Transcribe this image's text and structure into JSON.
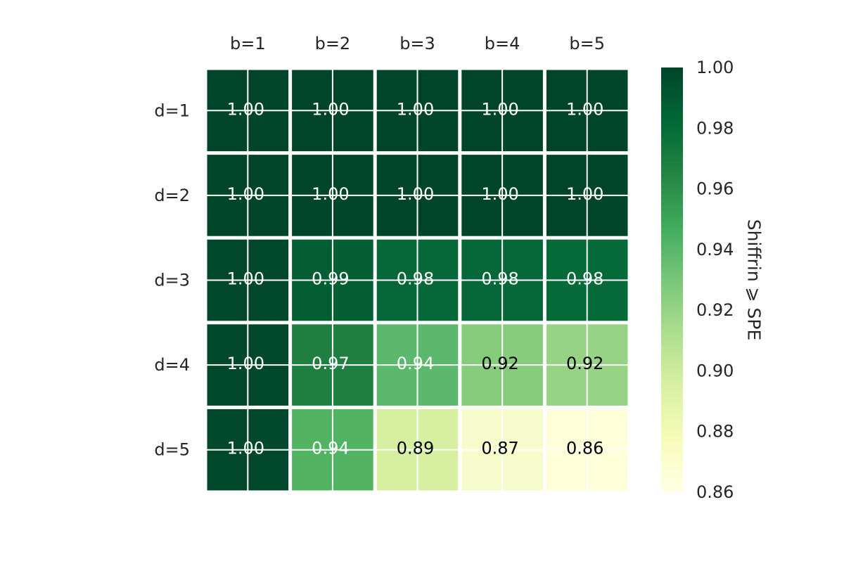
{
  "chart_data": {
    "type": "heatmap",
    "title": "",
    "xlabel": "",
    "ylabel": "",
    "x_labels": [
      "b=1",
      "b=2",
      "b=3",
      "b=4",
      "b=5"
    ],
    "y_labels": [
      "d=1",
      "d=2",
      "d=3",
      "d=4",
      "d=5"
    ],
    "values": [
      [
        1.0,
        1.0,
        1.0,
        1.0,
        1.0
      ],
      [
        1.0,
        1.0,
        1.0,
        1.0,
        1.0
      ],
      [
        1.0,
        0.99,
        0.98,
        0.98,
        0.98
      ],
      [
        1.0,
        0.97,
        0.94,
        0.92,
        0.92
      ],
      [
        1.0,
        0.94,
        0.89,
        0.87,
        0.86
      ]
    ],
    "cell_text": [
      [
        "1.00",
        "1.00",
        "1.00",
        "1.00",
        "1.00"
      ],
      [
        "1.00",
        "1.00",
        "1.00",
        "1.00",
        "1.00"
      ],
      [
        "1.00",
        "0.99",
        "0.98",
        "0.98",
        "0.98"
      ],
      [
        "1.00",
        "0.97",
        "0.94",
        "0.92",
        "0.92"
      ],
      [
        "1.00",
        "0.94",
        "0.89",
        "0.87",
        "0.86"
      ]
    ],
    "fill_colors": [
      [
        "#00442a",
        "#00442a",
        "#00442a",
        "#00442a",
        "#00442a"
      ],
      [
        "#00442a",
        "#00442a",
        "#00442a",
        "#00442a",
        "#00442a"
      ],
      [
        "#00472b",
        "#035e33",
        "#066838",
        "#066838",
        "#066a39"
      ],
      [
        "#00472b",
        "#1f7f40",
        "#5cb86c",
        "#86cc7c",
        "#96d384"
      ],
      [
        "#00472b",
        "#52b363",
        "#d7efa0",
        "#f6fccb",
        "#fefed8"
      ]
    ],
    "text_colors": [
      [
        "#ffffff",
        "#ffffff",
        "#ffffff",
        "#ffffff",
        "#ffffff"
      ],
      [
        "#ffffff",
        "#ffffff",
        "#ffffff",
        "#ffffff",
        "#ffffff"
      ],
      [
        "#ffffff",
        "#ffffff",
        "#ffffff",
        "#ffffff",
        "#ffffff"
      ],
      [
        "#ffffff",
        "#ffffff",
        "#ffffff",
        "#000000",
        "#000000"
      ],
      [
        "#ffffff",
        "#ffffff",
        "#000000",
        "#000000",
        "#000000"
      ]
    ],
    "x_axis_position": "top",
    "grid": true,
    "colorbar": {
      "label": "Shiffrin ⩾ SPE",
      "range": [
        0.86,
        1.0
      ],
      "ticks": [
        1.0,
        0.98,
        0.96,
        0.94,
        0.92,
        0.9,
        0.88,
        0.86
      ],
      "tick_labels": [
        "1.00",
        "0.98",
        "0.96",
        "0.94",
        "0.92",
        "0.90",
        "0.88",
        "0.86"
      ],
      "colormap": "YlGn",
      "gradient_stops": [
        "#00442a",
        "#006837",
        "#238443",
        "#41ab5d",
        "#78c679",
        "#addd8e",
        "#d9f0a3",
        "#f7fcb9",
        "#ffffe5"
      ]
    }
  }
}
